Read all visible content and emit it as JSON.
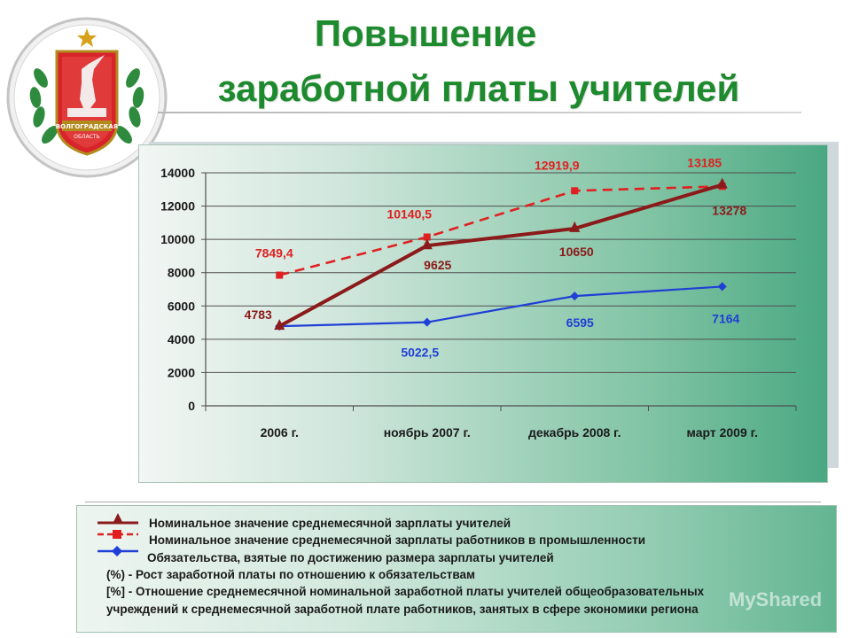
{
  "title": {
    "line1": "Повышение",
    "line2": "заработной платы учителей"
  },
  "emblem": {
    "label": "ВОЛГОГРАДСКАЯ ОБЛАСТЬ"
  },
  "colors": {
    "title": "#1e8a2e",
    "teachers": "#8b1a1a",
    "industry": "#e02020",
    "obligations": "#1f3fd6"
  },
  "chart_data": {
    "type": "line",
    "categories": [
      "2006 г.",
      "ноябрь 2007 г.",
      "декабрь 2008 г.",
      "март 2009 г."
    ],
    "ylim": [
      0,
      14000
    ],
    "yticks": [
      0,
      2000,
      4000,
      6000,
      8000,
      10000,
      12000,
      14000
    ],
    "grid": true,
    "series": [
      {
        "key": "teachers",
        "values": [
          4783,
          9625,
          10650,
          13278
        ],
        "labels": [
          "4783",
          "9625",
          "10650",
          "13278"
        ],
        "color": "#8b1a1a",
        "marker": "triangle",
        "line": "solid"
      },
      {
        "key": "industry",
        "values": [
          7849.4,
          10140.5,
          12919.9,
          13185
        ],
        "labels": [
          "7849,4",
          "10140,5",
          "12919,9",
          "13185"
        ],
        "color": "#e02020",
        "marker": "square",
        "line": "dashed"
      },
      {
        "key": "obligations",
        "values": [
          4783,
          5022.5,
          6595,
          7164
        ],
        "labels": [
          "",
          "5022,5",
          "6595",
          "7164"
        ],
        "color": "#1f3fd6",
        "marker": "diamond",
        "line": "solid"
      }
    ]
  },
  "legend": {
    "items": [
      "Номинальное значение среднемесячной зарплаты учителей",
      "Номинальное значение среднемесячной зарплаты работников в промышленности",
      "Обязательства, взятые по достижению размера зарплаты учителей"
    ],
    "notes": [
      "(%)  -  Рост заработной платы по отношению к обязательствам",
      "[%]  -  Отношение среднемесячной номинальной заработной платы учителей  общеобразовательных",
      "учреждений к среднемесячной заработной плате работников, занятых в сфере  экономики региона"
    ]
  },
  "watermark": "MyShared"
}
